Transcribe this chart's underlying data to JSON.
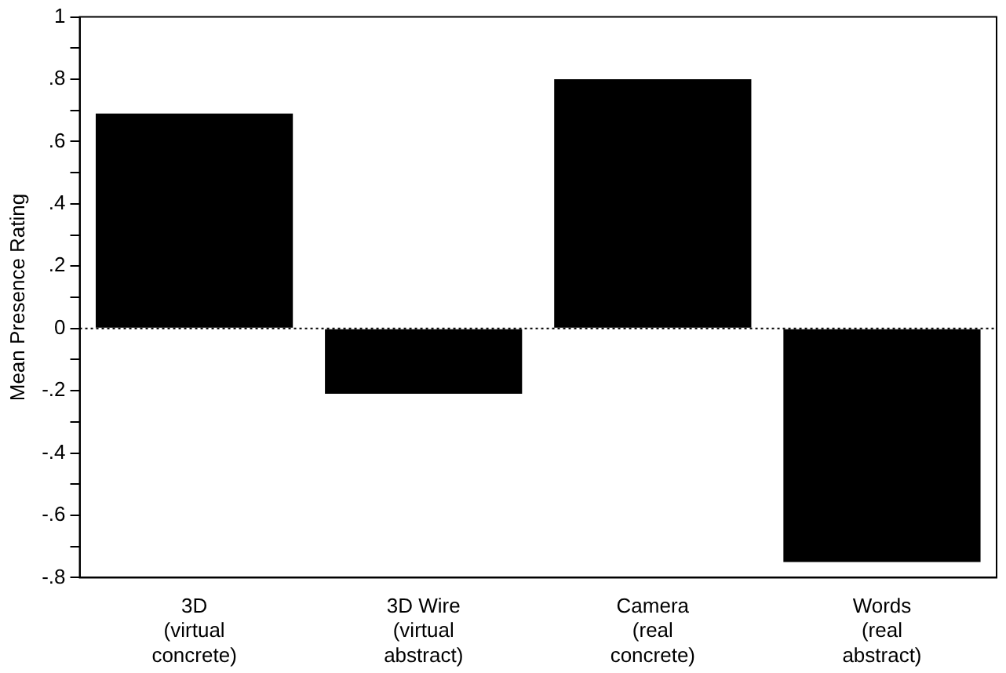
{
  "chart_data": {
    "type": "bar",
    "ylabel": "Mean Presence Rating",
    "categories": [
      "3D\n(virtual\nconcrete)",
      "3D Wire\n(virtual\nabstract)",
      "Camera\n(real\nconcrete)",
      "Words\n(real\nabstract)"
    ],
    "values": [
      0.69,
      -0.21,
      0.8,
      -0.75
    ],
    "color": "#000000",
    "ylim": [
      -0.8,
      1
    ],
    "yticks": [
      {
        "value": -0.8,
        "label": "-.8"
      },
      {
        "value": -0.7,
        "label": null
      },
      {
        "value": -0.6,
        "label": "-.6"
      },
      {
        "value": -0.5,
        "label": null
      },
      {
        "value": -0.4,
        "label": "-.4"
      },
      {
        "value": -0.3,
        "label": null
      },
      {
        "value": -0.2,
        "label": "-.2"
      },
      {
        "value": -0.1,
        "label": null
      },
      0,
      {
        "value": 0.1,
        "label": null
      },
      {
        "value": 0.2,
        "label": ".2"
      },
      {
        "value": 0.3,
        "label": null
      },
      {
        "value": 0.4,
        "label": ".4"
      },
      {
        "value": 0.5,
        "label": null
      },
      {
        "value": 0.6,
        "label": ".6"
      },
      {
        "value": 0.7,
        "label": null
      },
      {
        "value": 0.8,
        "label": ".8"
      },
      {
        "value": 0.9,
        "label": null
      },
      1
    ],
    "ref_lines": [
      {
        "axis": "y",
        "value": 0,
        "line_style": "dotted",
        "color": "#000000"
      }
    ],
    "grid": false,
    "legend": false
  }
}
